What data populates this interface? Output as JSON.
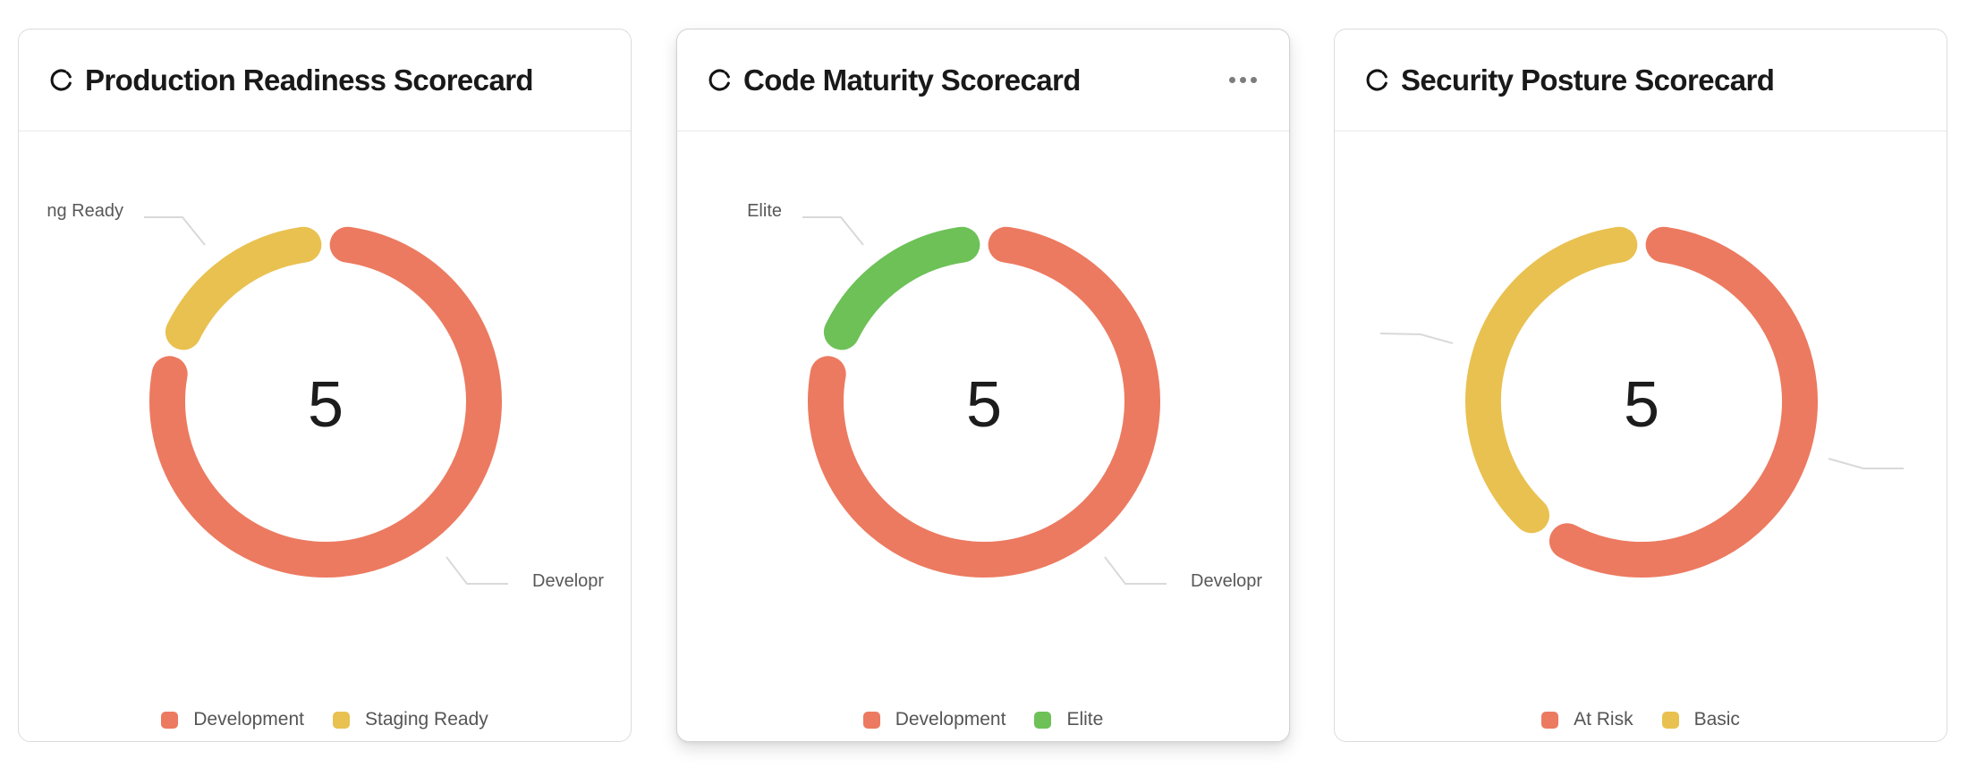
{
  "palette": {
    "development": "#EC7A60",
    "staging_ready": "#E9C150",
    "elite": "#6DC157",
    "at_risk": "#EC7A60",
    "basic": "#E9C150",
    "leader_line": "#D9D9D9"
  },
  "cards": [
    {
      "title": "Production Readiness Scorecard",
      "icon": "circle-dashed-icon",
      "center_value": "5",
      "callouts": {
        "left": "ng Ready",
        "right": "Developr"
      },
      "legend": [
        {
          "label": "Development",
          "color": "development"
        },
        {
          "label": "Staging Ready",
          "color": "staging_ready"
        }
      ]
    },
    {
      "title": "Code Maturity Scorecard",
      "icon": "circle-dashed-icon",
      "menu": "more-options",
      "center_value": "5",
      "callouts": {
        "left": "Elite",
        "right": "Developr"
      },
      "legend": [
        {
          "label": "Development",
          "color": "development"
        },
        {
          "label": "Elite",
          "color": "elite"
        }
      ]
    },
    {
      "title": "Security Posture Scorecard",
      "icon": "circle-dashed-icon",
      "center_value": "5",
      "callouts": {},
      "legend": [
        {
          "label": "At Risk",
          "color": "at_risk"
        },
        {
          "label": "Basic",
          "color": "basic"
        }
      ]
    }
  ],
  "chart_data": [
    {
      "type": "pie",
      "subtype": "donut",
      "title": "Production Readiness Scorecard",
      "total_label": "5",
      "legend_position": "bottom",
      "segments": [
        {
          "label": "Development",
          "value": 4,
          "color": "#EC7A60"
        },
        {
          "label": "Staging Ready",
          "value": 1,
          "color": "#E9C150"
        }
      ]
    },
    {
      "type": "pie",
      "subtype": "donut",
      "title": "Code Maturity Scorecard",
      "total_label": "5",
      "legend_position": "bottom",
      "segments": [
        {
          "label": "Development",
          "value": 4,
          "color": "#EC7A60"
        },
        {
          "label": "Elite",
          "value": 1,
          "color": "#6DC157"
        }
      ]
    },
    {
      "type": "pie",
      "subtype": "donut",
      "title": "Security Posture Scorecard",
      "total_label": "5",
      "legend_position": "bottom",
      "segments": [
        {
          "label": "At Risk",
          "value": 3,
          "color": "#EC7A60"
        },
        {
          "label": "Basic",
          "value": 2,
          "color": "#E9C150"
        }
      ]
    }
  ]
}
